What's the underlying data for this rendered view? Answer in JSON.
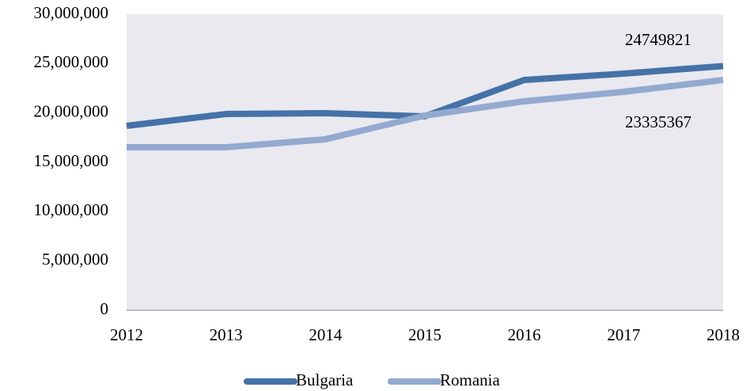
{
  "chart_data": {
    "type": "line",
    "categories": [
      "2012",
      "2013",
      "2014",
      "2015",
      "2016",
      "2017",
      "2018"
    ],
    "series": [
      {
        "name": "Bulgaria",
        "color": "#4572a7",
        "values": [
          18690000,
          19890000,
          19970000,
          19650000,
          23340000,
          23980000,
          24749821
        ]
      },
      {
        "name": "Romania",
        "color": "#93a9d0",
        "values": [
          16520000,
          16520000,
          17330000,
          19730000,
          21180000,
          22140000,
          23335367
        ]
      }
    ],
    "ylim": [
      0,
      30000000
    ],
    "yticks": [
      0,
      {
        "value": 5000000,
        "label": "5,000,000"
      },
      {
        "value": 10000000,
        "label": "10,000,000"
      },
      {
        "value": 15000000,
        "label": "15,000,000"
      },
      {
        "value": 20000000,
        "label": "20,000,000"
      },
      {
        "value": 25000000,
        "label": "25,000,000"
      },
      {
        "value": 30000000,
        "label": "30,000,000"
      }
    ],
    "legend": "bottom"
  }
}
